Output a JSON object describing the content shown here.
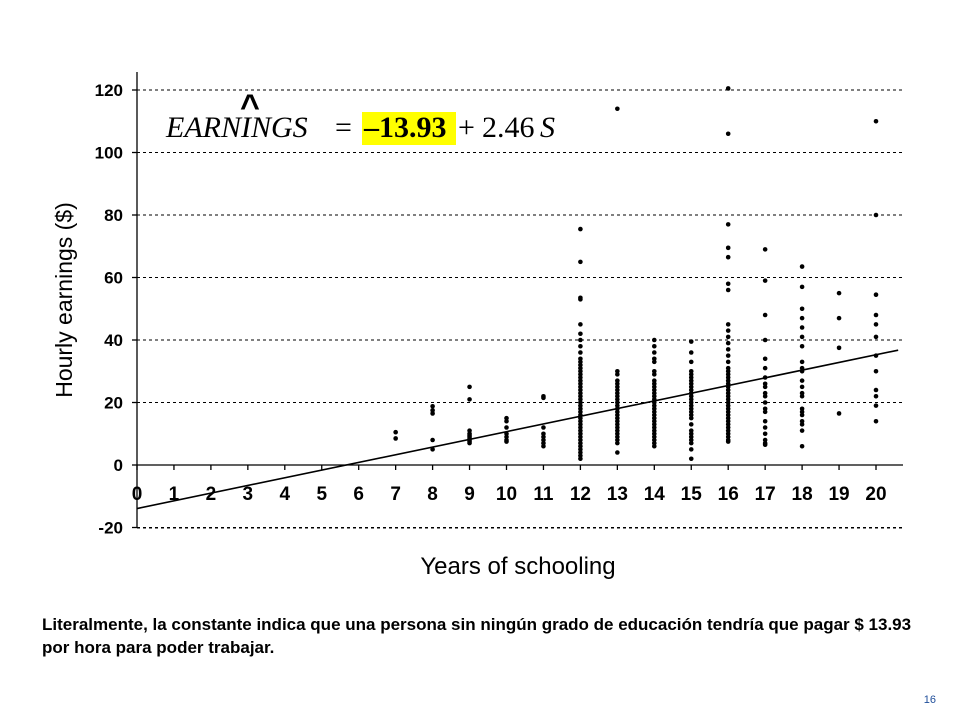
{
  "equation": {
    "lhs": "EARNINGS",
    "hat": "^",
    "equals": "=",
    "intercept": "–13.93",
    "plus": "+",
    "slope_coef": "2.46",
    "slope_var": "S",
    "highlight_color": "#ffff00"
  },
  "caption": "Literalmente, la constante indica que una persona sin ningún grado de educación tendría que pagar $ 13.93 por hora para poder trabajar.",
  "page_number": "16",
  "colors": {
    "points": "#000000",
    "line": "#000000",
    "gridline": "#000000"
  },
  "chart_data": {
    "type": "scatter",
    "title": "",
    "xlabel": "Years of schooling",
    "ylabel": "Hourly earnings ($)",
    "xlim": [
      0,
      20.8
    ],
    "ylim": [
      -20,
      125
    ],
    "xticks": [
      "0",
      "1",
      "2",
      "3",
      "4",
      "5",
      "6",
      "7",
      "8",
      "9",
      "10",
      "11",
      "12",
      "13",
      "14",
      "15",
      "16",
      "17",
      "18",
      "19",
      "20"
    ],
    "yticks": [
      -20,
      0,
      20,
      40,
      60,
      80,
      100,
      120
    ],
    "grid": "horizontal dashed",
    "regression": {
      "intercept": -13.93,
      "slope": 2.46,
      "x_range": [
        0,
        20.6
      ]
    },
    "points": [
      [
        7,
        10.5
      ],
      [
        7,
        8.5
      ],
      [
        8,
        18.8
      ],
      [
        8,
        17.5
      ],
      [
        8,
        16.5
      ],
      [
        8,
        8
      ],
      [
        8,
        5
      ],
      [
        9,
        25
      ],
      [
        9,
        21
      ],
      [
        9,
        11
      ],
      [
        9,
        10
      ],
      [
        9,
        9.5
      ],
      [
        9,
        9
      ],
      [
        9,
        8.5
      ],
      [
        9,
        8
      ],
      [
        9,
        7.5
      ],
      [
        9,
        7
      ],
      [
        10,
        15
      ],
      [
        10,
        14
      ],
      [
        10,
        12
      ],
      [
        10,
        10
      ],
      [
        10,
        9
      ],
      [
        10,
        8
      ],
      [
        10,
        7.5
      ],
      [
        11,
        22
      ],
      [
        11,
        21.5
      ],
      [
        11,
        12
      ],
      [
        11,
        10
      ],
      [
        11,
        9
      ],
      [
        11,
        8
      ],
      [
        11,
        7
      ],
      [
        11,
        6
      ],
      [
        12,
        75.5
      ],
      [
        12,
        65
      ],
      [
        12,
        53.5
      ],
      [
        12,
        53
      ],
      [
        12,
        45
      ],
      [
        12,
        42
      ],
      [
        12,
        40
      ],
      [
        12,
        38
      ],
      [
        12,
        36
      ],
      [
        12,
        34
      ],
      [
        12,
        33
      ],
      [
        12,
        32
      ],
      [
        12,
        31
      ],
      [
        12,
        30
      ],
      [
        12,
        29
      ],
      [
        12,
        28
      ],
      [
        12,
        27
      ],
      [
        12,
        26
      ],
      [
        12,
        25
      ],
      [
        12,
        24
      ],
      [
        12,
        23
      ],
      [
        12,
        22
      ],
      [
        12,
        21
      ],
      [
        12,
        20
      ],
      [
        12,
        19
      ],
      [
        12,
        18
      ],
      [
        12,
        17
      ],
      [
        12,
        16
      ],
      [
        12,
        15
      ],
      [
        12,
        14
      ],
      [
        12,
        13
      ],
      [
        12,
        12
      ],
      [
        12,
        11
      ],
      [
        12,
        10
      ],
      [
        12,
        9
      ],
      [
        12,
        8
      ],
      [
        12,
        7
      ],
      [
        12,
        6
      ],
      [
        12,
        5
      ],
      [
        12,
        4
      ],
      [
        12,
        3
      ],
      [
        12,
        2
      ],
      [
        13,
        114
      ],
      [
        13,
        30
      ],
      [
        13,
        29
      ],
      [
        13,
        27
      ],
      [
        13,
        26
      ],
      [
        13,
        25
      ],
      [
        13,
        24
      ],
      [
        13,
        23
      ],
      [
        13,
        22
      ],
      [
        13,
        21
      ],
      [
        13,
        20
      ],
      [
        13,
        19
      ],
      [
        13,
        18
      ],
      [
        13,
        17
      ],
      [
        13,
        16
      ],
      [
        13,
        15
      ],
      [
        13,
        14
      ],
      [
        13,
        13
      ],
      [
        13,
        12
      ],
      [
        13,
        11
      ],
      [
        13,
        10
      ],
      [
        13,
        9
      ],
      [
        13,
        8
      ],
      [
        13,
        7
      ],
      [
        13,
        4
      ],
      [
        14,
        40
      ],
      [
        14,
        38
      ],
      [
        14,
        36
      ],
      [
        14,
        34
      ],
      [
        14,
        33
      ],
      [
        14,
        30
      ],
      [
        14,
        29
      ],
      [
        14,
        27
      ],
      [
        14,
        26
      ],
      [
        14,
        25
      ],
      [
        14,
        24
      ],
      [
        14,
        23
      ],
      [
        14,
        22
      ],
      [
        14,
        21
      ],
      [
        14,
        20
      ],
      [
        14,
        19
      ],
      [
        14,
        18
      ],
      [
        14,
        17
      ],
      [
        14,
        16
      ],
      [
        14,
        15
      ],
      [
        14,
        14
      ],
      [
        14,
        13
      ],
      [
        14,
        12
      ],
      [
        14,
        11
      ],
      [
        14,
        10
      ],
      [
        14,
        9
      ],
      [
        14,
        8
      ],
      [
        14,
        7
      ],
      [
        14,
        6
      ],
      [
        15,
        39.5
      ],
      [
        15,
        36
      ],
      [
        15,
        33
      ],
      [
        15,
        30
      ],
      [
        15,
        29
      ],
      [
        15,
        28
      ],
      [
        15,
        27
      ],
      [
        15,
        26
      ],
      [
        15,
        25
      ],
      [
        15,
        24
      ],
      [
        15,
        23
      ],
      [
        15,
        22
      ],
      [
        15,
        21
      ],
      [
        15,
        20
      ],
      [
        15,
        19
      ],
      [
        15,
        18
      ],
      [
        15,
        17
      ],
      [
        15,
        16
      ],
      [
        15,
        15
      ],
      [
        15,
        13
      ],
      [
        15,
        11
      ],
      [
        15,
        10
      ],
      [
        15,
        9
      ],
      [
        15,
        8
      ],
      [
        15,
        7
      ],
      [
        15,
        5
      ],
      [
        15,
        2
      ],
      [
        16,
        120.5
      ],
      [
        16,
        106
      ],
      [
        16,
        77
      ],
      [
        16,
        69.5
      ],
      [
        16,
        66.5
      ],
      [
        16,
        58
      ],
      [
        16,
        56
      ],
      [
        16,
        45
      ],
      [
        16,
        43
      ],
      [
        16,
        41
      ],
      [
        16,
        39
      ],
      [
        16,
        37
      ],
      [
        16,
        35
      ],
      [
        16,
        33
      ],
      [
        16,
        31
      ],
      [
        16,
        30
      ],
      [
        16,
        29
      ],
      [
        16,
        28
      ],
      [
        16,
        27
      ],
      [
        16,
        26
      ],
      [
        16,
        25
      ],
      [
        16,
        24
      ],
      [
        16,
        23
      ],
      [
        16,
        22
      ],
      [
        16,
        21
      ],
      [
        16,
        20
      ],
      [
        16,
        19
      ],
      [
        16,
        18
      ],
      [
        16,
        17
      ],
      [
        16,
        16
      ],
      [
        16,
        15
      ],
      [
        16,
        14
      ],
      [
        16,
        13
      ],
      [
        16,
        12
      ],
      [
        16,
        11
      ],
      [
        16,
        10
      ],
      [
        16,
        9
      ],
      [
        16,
        8
      ],
      [
        16,
        7.5
      ],
      [
        17,
        69
      ],
      [
        17,
        59
      ],
      [
        17,
        48
      ],
      [
        17,
        40
      ],
      [
        17,
        34
      ],
      [
        17,
        31
      ],
      [
        17,
        28
      ],
      [
        17,
        26
      ],
      [
        17,
        25
      ],
      [
        17,
        23
      ],
      [
        17,
        22
      ],
      [
        17,
        20
      ],
      [
        17,
        18
      ],
      [
        17,
        17
      ],
      [
        17,
        14
      ],
      [
        17,
        12
      ],
      [
        17,
        10
      ],
      [
        17,
        8
      ],
      [
        17,
        7
      ],
      [
        17,
        6.5
      ],
      [
        18,
        63.5
      ],
      [
        18,
        57
      ],
      [
        18,
        50
      ],
      [
        18,
        47
      ],
      [
        18,
        44
      ],
      [
        18,
        41
      ],
      [
        18,
        38
      ],
      [
        18,
        33
      ],
      [
        18,
        31
      ],
      [
        18,
        30
      ],
      [
        18,
        27
      ],
      [
        18,
        25
      ],
      [
        18,
        23
      ],
      [
        18,
        22
      ],
      [
        18,
        18
      ],
      [
        18,
        17
      ],
      [
        18,
        16
      ],
      [
        18,
        14
      ],
      [
        18,
        13
      ],
      [
        18,
        11
      ],
      [
        18,
        6
      ],
      [
        19,
        55
      ],
      [
        19,
        47
      ],
      [
        19,
        37.5
      ],
      [
        19,
        16.5
      ],
      [
        20,
        110
      ],
      [
        20,
        80
      ],
      [
        20,
        54.5
      ],
      [
        20,
        48
      ],
      [
        20,
        45
      ],
      [
        20,
        41
      ],
      [
        20,
        35
      ],
      [
        20,
        30
      ],
      [
        20,
        24
      ],
      [
        20,
        22
      ],
      [
        20,
        19
      ],
      [
        20,
        14
      ]
    ]
  }
}
